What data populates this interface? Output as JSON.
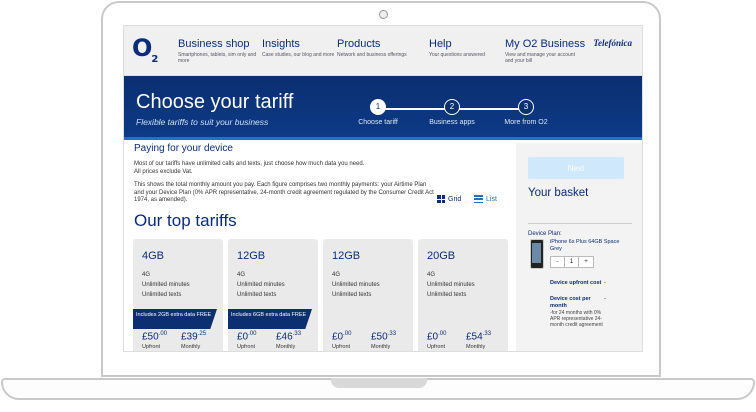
{
  "header": {
    "logo": "O",
    "logo_sub": "2",
    "nav": [
      {
        "title": "Business shop",
        "sub": "Smartphones, tablets, sim only and more"
      },
      {
        "title": "Insights",
        "sub": "Case studies, our blog and more"
      },
      {
        "title": "Products",
        "sub": "Network and business offerings"
      },
      {
        "title": "Help",
        "sub": "Your questions answered"
      },
      {
        "title": "My O2 Business",
        "sub": "View and manage your account and your bill"
      }
    ],
    "partner": "Telefónica"
  },
  "banner": {
    "title": "Choose your tariff",
    "subtitle": "Flexible tariffs to suit your business",
    "steps": [
      {
        "num": "1",
        "label": "Choose tariff",
        "active": true
      },
      {
        "num": "2",
        "label": "Business apps",
        "active": false
      },
      {
        "num": "3",
        "label": "More from O2",
        "active": false
      }
    ]
  },
  "content": {
    "heading": "Paying for your device",
    "desc1": "Most of our tariffs have unlimited calls and texts, just choose how much data you need.",
    "desc2": "All prices exclude Vat.",
    "desc3": "This shows the total monthly amount you pay. Each figure comprises two monthly payments: your Airtime Plan and your Device Plan (0% APR representative, 24-month credit agreement regulated by the Consumer Credit Act 1974, as amended).",
    "view_grid": "Grid",
    "view_list": "List",
    "top_title": "Our top tariffs",
    "cards": [
      {
        "data": "4GB",
        "network": "4G",
        "f1": "Unlimited minutes",
        "f2": "Unlimited texts",
        "promo": "Includes 2GB extra data FREE",
        "upfront": "£50",
        "upfront_p": ".00",
        "monthly": "£39",
        "monthly_p": ".25",
        "u1": "Upfront",
        "u2": "Monthly"
      },
      {
        "data": "12GB",
        "network": "4G",
        "f1": "Unlimited minutes",
        "f2": "Unlimited texts",
        "promo": "Includes 6GB extra data FREE",
        "upfront": "£0",
        "upfront_p": ".00",
        "monthly": "£46",
        "monthly_p": ".33",
        "u1": "Upfront",
        "u2": "Monthly"
      },
      {
        "data": "12GB",
        "network": "4G",
        "f1": "Unlimited minutes",
        "f2": "Unlimited texts",
        "promo": "",
        "upfront": "£0",
        "upfront_p": ".00",
        "monthly": "£50",
        "monthly_p": ".33",
        "u1": "Upfront",
        "u2": "Monthly"
      },
      {
        "data": "20GB",
        "network": "4G",
        "f1": "Unlimited minutes",
        "f2": "Unlimited texts",
        "promo": "",
        "upfront": "£0",
        "upfront_p": ".00",
        "monthly": "£54",
        "monthly_p": ".33",
        "u1": "Upfront",
        "u2": "Monthly"
      }
    ]
  },
  "basket": {
    "next_label": "Next",
    "title": "Your basket",
    "device_plan_label": "Device Plan:",
    "product_name": "iPhone 6s Plus 64GB Space Grey",
    "qty_minus": "-",
    "qty_value": "1",
    "qty_plus": "+",
    "upfront_label": "Device upfront cost",
    "upfront_value": "-",
    "monthly_label": "Device cost per month",
    "monthly_value": "-",
    "terms": "-for 24 months with 0% APR representative 24-month credit agreement"
  }
}
